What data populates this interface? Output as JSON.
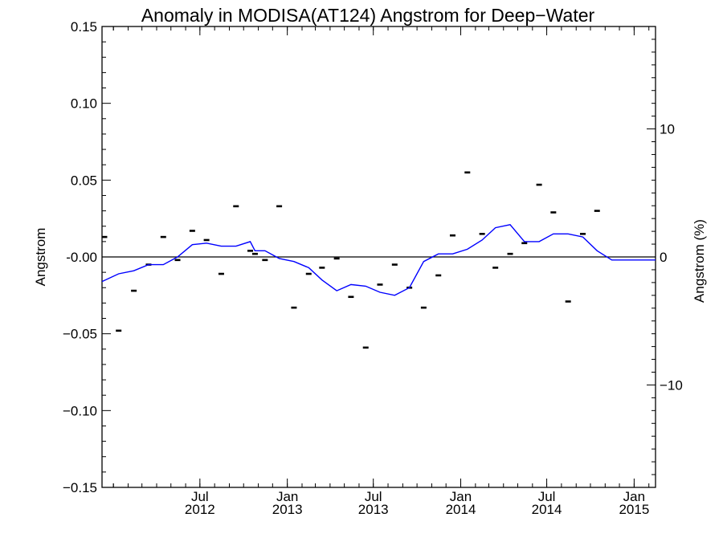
{
  "chart_data": {
    "type": "line",
    "title": "Anomaly in MODISA(AT124) Angstrom for Deep−Water",
    "ylabel": "Angstrom",
    "y2label": "Angstrom (%)",
    "xlabel": "",
    "ylim": [
      -0.15,
      0.15
    ],
    "y2lim": [
      -18,
      18
    ],
    "y_ticks": [
      "0.15",
      "0.10",
      "0.05",
      "-0.00",
      "−0.05",
      "−0.10",
      "−0.15"
    ],
    "y_tick_values": [
      0.15,
      0.1,
      0.05,
      0.0,
      -0.05,
      -0.1,
      -0.15
    ],
    "y2_ticks": [
      "10",
      "0",
      "−10"
    ],
    "y2_tick_values": [
      10,
      0,
      -10
    ],
    "xlim": [
      "2011-12-08",
      "2015-02-15"
    ],
    "x_ticks": [
      {
        "date": "2012-07-01",
        "month": "Jul",
        "year": "2012"
      },
      {
        "date": "2013-01-01",
        "month": "Jan",
        "year": "2013"
      },
      {
        "date": "2013-07-01",
        "month": "Jul",
        "year": "2013"
      },
      {
        "date": "2014-01-01",
        "month": "Jan",
        "year": "2014"
      },
      {
        "date": "2014-07-01",
        "month": "Jul",
        "year": "2014"
      },
      {
        "date": "2015-01-01",
        "month": "Jan",
        "year": "2015"
      }
    ],
    "zero_line": true,
    "grid": false,
    "series": [
      {
        "style": "markers",
        "color": "#000000",
        "points": [
          [
            "2011-12-13",
            0.013
          ],
          [
            "2012-01-12",
            -0.048
          ],
          [
            "2012-02-13",
            -0.022
          ],
          [
            "2012-03-15",
            -0.005
          ],
          [
            "2012-04-15",
            0.013
          ],
          [
            "2012-05-15",
            -0.002
          ],
          [
            "2012-06-15",
            0.017
          ],
          [
            "2012-07-15",
            0.011
          ],
          [
            "2012-08-15",
            -0.011
          ],
          [
            "2012-09-15",
            0.033
          ],
          [
            "2012-10-15",
            0.004
          ],
          [
            "2012-10-25",
            0.002
          ],
          [
            "2012-11-15",
            -0.002
          ],
          [
            "2012-12-15",
            0.033
          ],
          [
            "2013-01-15",
            -0.033
          ],
          [
            "2013-02-15",
            -0.011
          ],
          [
            "2013-03-15",
            -0.007
          ],
          [
            "2013-04-15",
            -0.001
          ],
          [
            "2013-05-15",
            -0.026
          ],
          [
            "2013-06-15",
            -0.059
          ],
          [
            "2013-07-15",
            -0.018
          ],
          [
            "2013-08-15",
            -0.005
          ],
          [
            "2013-09-15",
            -0.02
          ],
          [
            "2013-10-15",
            -0.033
          ],
          [
            "2013-11-15",
            -0.012
          ],
          [
            "2013-12-15",
            0.014
          ],
          [
            "2014-01-15",
            0.055
          ],
          [
            "2014-02-15",
            0.015
          ],
          [
            "2014-03-15",
            -0.007
          ],
          [
            "2014-04-15",
            0.002
          ],
          [
            "2014-05-15",
            0.009
          ],
          [
            "2014-06-15",
            0.047
          ],
          [
            "2014-07-15",
            0.029
          ],
          [
            "2014-08-15",
            -0.029
          ],
          [
            "2014-09-15",
            0.015
          ],
          [
            "2014-10-15",
            0.03
          ]
        ]
      },
      {
        "style": "line",
        "color": "#0000ff",
        "points": [
          [
            "2011-12-08",
            -0.016
          ],
          [
            "2012-01-12",
            -0.011
          ],
          [
            "2012-02-13",
            -0.009
          ],
          [
            "2012-03-15",
            -0.005
          ],
          [
            "2012-04-15",
            -0.005
          ],
          [
            "2012-05-15",
            0.0
          ],
          [
            "2012-06-15",
            0.008
          ],
          [
            "2012-07-15",
            0.009
          ],
          [
            "2012-08-15",
            0.007
          ],
          [
            "2012-09-15",
            0.007
          ],
          [
            "2012-10-15",
            0.01
          ],
          [
            "2012-10-25",
            0.004
          ],
          [
            "2012-11-15",
            0.004
          ],
          [
            "2012-12-15",
            -0.001
          ],
          [
            "2013-01-15",
            -0.003
          ],
          [
            "2013-02-15",
            -0.007
          ],
          [
            "2013-03-15",
            -0.015
          ],
          [
            "2013-04-15",
            -0.022
          ],
          [
            "2013-05-15",
            -0.018
          ],
          [
            "2013-06-15",
            -0.019
          ],
          [
            "2013-07-15",
            -0.023
          ],
          [
            "2013-08-15",
            -0.025
          ],
          [
            "2013-09-15",
            -0.02
          ],
          [
            "2013-10-15",
            -0.003
          ],
          [
            "2013-11-15",
            0.002
          ],
          [
            "2013-12-15",
            0.002
          ],
          [
            "2014-01-15",
            0.005
          ],
          [
            "2014-02-15",
            0.011
          ],
          [
            "2014-03-15",
            0.019
          ],
          [
            "2014-04-15",
            0.021
          ],
          [
            "2014-05-15",
            0.01
          ],
          [
            "2014-06-15",
            0.01
          ],
          [
            "2014-07-15",
            0.015
          ],
          [
            "2014-08-15",
            0.015
          ],
          [
            "2014-09-15",
            0.013
          ],
          [
            "2014-10-15",
            0.004
          ],
          [
            "2014-11-15",
            -0.002
          ],
          [
            "2015-02-15",
            -0.002
          ]
        ]
      }
    ]
  }
}
